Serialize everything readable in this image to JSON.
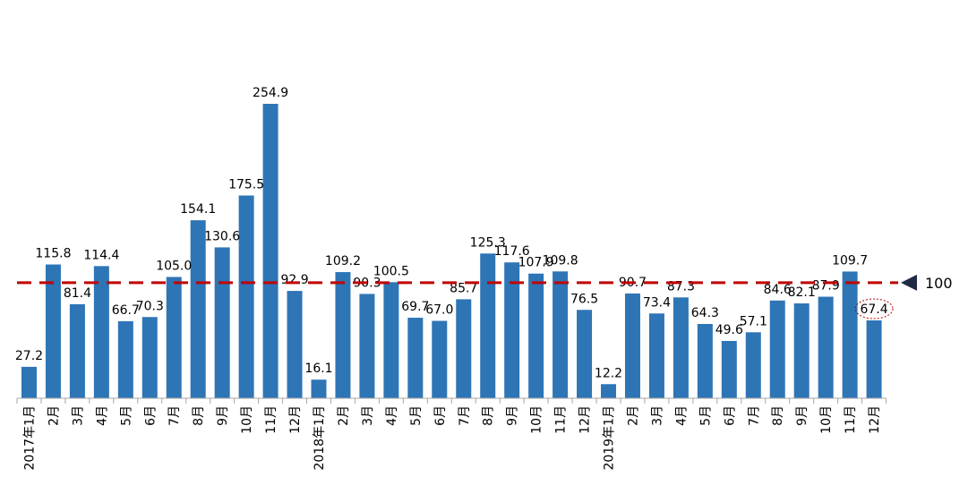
{
  "chart_data": {
    "type": "bar",
    "categories": [
      "2017年1月",
      "2月",
      "3月",
      "4月",
      "5月",
      "6月",
      "7月",
      "8月",
      "9月",
      "10月",
      "11月",
      "12月",
      "2018年1月",
      "2月",
      "3月",
      "4月",
      "5月",
      "6月",
      "7月",
      "8月",
      "9月",
      "10月",
      "11月",
      "12月",
      "2019年1月",
      "2月",
      "3月",
      "4月",
      "5月",
      "6月",
      "7月",
      "8月",
      "9月",
      "10月",
      "11月",
      "12月"
    ],
    "values": [
      27.2,
      115.8,
      81.4,
      114.4,
      66.7,
      70.3,
      105.0,
      154.1,
      130.6,
      175.5,
      254.9,
      92.9,
      16.1,
      109.2,
      90.3,
      100.5,
      69.7,
      67.0,
      85.7,
      125.3,
      117.6,
      107.9,
      109.8,
      76.5,
      12.2,
      90.7,
      73.4,
      87.3,
      64.3,
      49.6,
      57.1,
      84.6,
      82.1,
      87.9,
      109.7,
      67.4
    ],
    "value_labels": [
      "27.2",
      "115.8",
      "81.4",
      "114.4",
      "66.7",
      "70.3",
      "105.0",
      "154.1",
      "130.6",
      "175.5",
      "254.9",
      "92.9",
      "16.1",
      "109.2",
      "90.3",
      "100.5",
      "69.7",
      "67.0",
      "85.7",
      "125.3",
      "117.6",
      "107.9",
      "109.8",
      "76.5",
      "12.2",
      "90.7",
      "73.4",
      "87.3",
      "64.3",
      "49.6",
      "57.1",
      "84.6",
      "82.1",
      "87.9",
      "109.7",
      "67.4"
    ],
    "bar_color": "#2E75B6",
    "reference_line": {
      "value": 100,
      "label": "100",
      "color": "#C00000",
      "style": "dashed"
    },
    "highlighted_index": 35,
    "title": "",
    "xlabel": "",
    "ylabel": "",
    "ylim": [
      0,
      254.9
    ],
    "grid": false,
    "legend": "none"
  }
}
